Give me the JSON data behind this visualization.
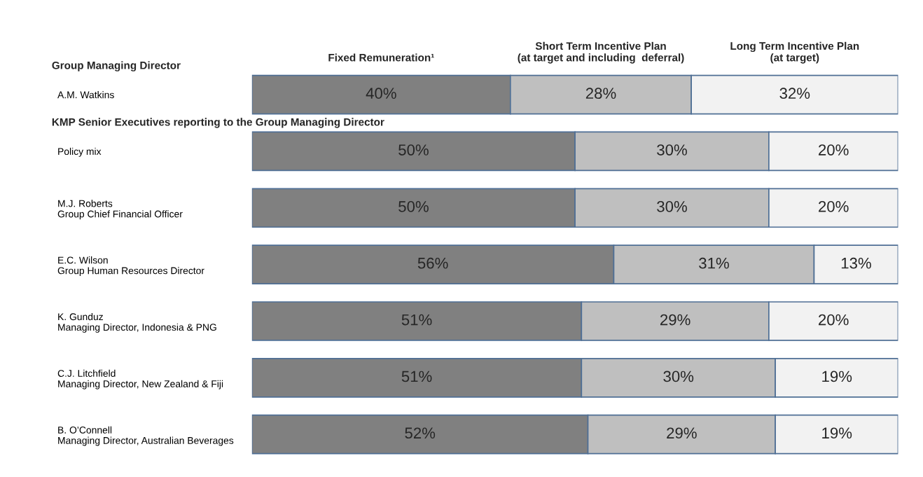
{
  "chart_data": {
    "type": "bar",
    "orientation": "horizontal",
    "stacked": true,
    "categories": [
      "A.M. Watkins",
      "Policy mix",
      "M.J. Roberts\nGroup Chief Financial Officer",
      "E.C. Wilson\nGroup Human Resources Director",
      "K. Gunduz\nManaging Director, Indonesia & PNG",
      "C.J. Litchfield\nManaging Director, New Zealand & Fiji",
      "B. O’Connell\nManaging Director, Australian Beverages"
    ],
    "series": [
      {
        "name": "Fixed Remuneration¹",
        "color": "#808080",
        "values": [
          40,
          50,
          50,
          56,
          51,
          51,
          52
        ],
        "value_labels": [
          "40%",
          "50%",
          "50%",
          "56%",
          "51%",
          "51%",
          "52%"
        ]
      },
      {
        "name": "Short Term Incentive Plan\n(at target and including  deferral)",
        "color": "#bfbfbf",
        "values": [
          28,
          30,
          30,
          31,
          29,
          30,
          29
        ],
        "value_labels": [
          "28%",
          "30%",
          "30%",
          "31%",
          "29%",
          "30%",
          "29%"
        ]
      },
      {
        "name": "Long Term Incentive Plan\n(at target)",
        "color": "#f2f2f2",
        "values": [
          32,
          20,
          20,
          13,
          20,
          19,
          19
        ],
        "value_labels": [
          "32%",
          "20%",
          "20%",
          "13%",
          "20%",
          "19%",
          "19%"
        ]
      }
    ],
    "tick_labels": "y",
    "legend": false,
    "grid": false,
    "annotations": [
      "Group Managing Director",
      "KMP Senior Executives reporting to the Group Managing Director"
    ]
  }
}
